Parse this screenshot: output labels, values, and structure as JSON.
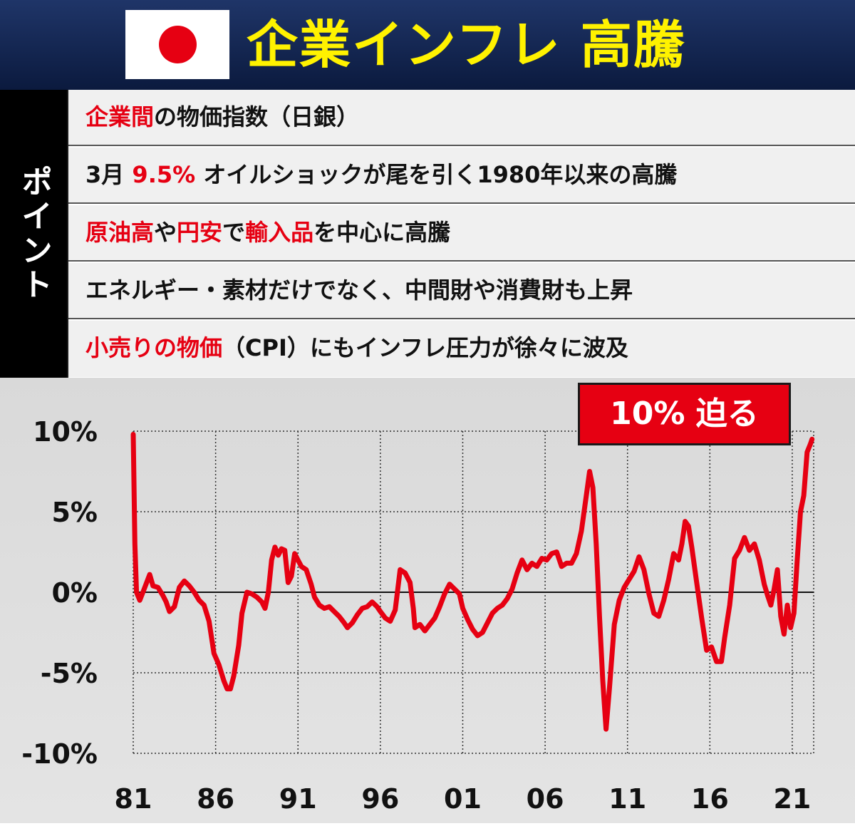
{
  "header": {
    "title": "企業インフレ 高騰",
    "flag_colors": {
      "field": "#ffffff",
      "disc": "#e60012"
    }
  },
  "points": {
    "side_label": "ポイント",
    "rows": [
      [
        {
          "text": "企業間",
          "red": true
        },
        {
          "text": "の物価指数（日銀）",
          "red": false
        }
      ],
      [
        {
          "text": "3月 ",
          "red": false
        },
        {
          "text": "9.5%",
          "red": true
        },
        {
          "text": " オイルショックが尾を引く1980年以来の高騰",
          "red": false
        }
      ],
      [
        {
          "text": "原油高",
          "red": true
        },
        {
          "text": "や",
          "red": false
        },
        {
          "text": "円安",
          "red": true
        },
        {
          "text": "で",
          "red": false
        },
        {
          "text": "輸入品",
          "red": true
        },
        {
          "text": "を中心に高騰",
          "red": false
        }
      ],
      [
        {
          "text": "エネルギー・素材だけでなく、中間財や消費財も上昇",
          "red": false
        }
      ],
      [
        {
          "text": "小売りの物価",
          "red": true
        },
        {
          "text": "（CPI）にもインフレ圧力が徐々に波及",
          "red": false
        }
      ]
    ]
  },
  "callout": {
    "text": "10% 迫る"
  },
  "colors": {
    "accent": "#e60012",
    "title": "#fff200",
    "header_bg": "#0b1a3e"
  },
  "chart_data": {
    "type": "line",
    "title": "",
    "xlabel": "",
    "ylabel": "",
    "ylim": [
      -10,
      10
    ],
    "xlim": [
      1981,
      2022.3
    ],
    "y_ticks": [
      10,
      5,
      0,
      -5,
      -10
    ],
    "y_tick_labels": [
      "10%",
      "5%",
      "0%",
      "-5%",
      "-10%"
    ],
    "x_ticks": [
      1981,
      1986,
      1991,
      1996,
      2001,
      2006,
      2011,
      2016,
      2021
    ],
    "x_tick_labels": [
      "81",
      "86",
      "91",
      "96",
      "01",
      "06",
      "11",
      "16",
      "21"
    ],
    "grid": true,
    "zero_line": true,
    "series": [
      {
        "color": "#e60012",
        "points": [
          [
            1981.0,
            9.8
          ],
          [
            1981.1,
            3.0
          ],
          [
            1981.2,
            0.0
          ],
          [
            1981.4,
            -0.5
          ],
          [
            1981.7,
            0.3
          ],
          [
            1982.0,
            1.1
          ],
          [
            1982.2,
            0.4
          ],
          [
            1982.5,
            0.3
          ],
          [
            1982.8,
            -0.2
          ],
          [
            1983.0,
            -0.6
          ],
          [
            1983.2,
            -1.2
          ],
          [
            1983.5,
            -0.9
          ],
          [
            1983.8,
            0.3
          ],
          [
            1984.1,
            0.7
          ],
          [
            1984.4,
            0.4
          ],
          [
            1984.7,
            0.0
          ],
          [
            1985.0,
            -0.5
          ],
          [
            1985.3,
            -0.8
          ],
          [
            1985.6,
            -1.8
          ],
          [
            1985.9,
            -3.8
          ],
          [
            1986.2,
            -4.5
          ],
          [
            1986.5,
            -5.5
          ],
          [
            1986.7,
            -6.0
          ],
          [
            1986.9,
            -6.0
          ],
          [
            1987.1,
            -5.2
          ],
          [
            1987.4,
            -3.3
          ],
          [
            1987.6,
            -1.3
          ],
          [
            1987.9,
            0.0
          ],
          [
            1988.2,
            -0.1
          ],
          [
            1988.5,
            -0.3
          ],
          [
            1988.8,
            -0.6
          ],
          [
            1989.0,
            -1.0
          ],
          [
            1989.2,
            0.0
          ],
          [
            1989.4,
            2.0
          ],
          [
            1989.6,
            2.8
          ],
          [
            1989.8,
            2.3
          ],
          [
            1990.0,
            2.7
          ],
          [
            1990.2,
            2.6
          ],
          [
            1990.4,
            0.6
          ],
          [
            1990.6,
            1.0
          ],
          [
            1990.8,
            2.4
          ],
          [
            1991.0,
            2.0
          ],
          [
            1991.2,
            1.6
          ],
          [
            1991.5,
            1.4
          ],
          [
            1991.8,
            0.5
          ],
          [
            1992.0,
            -0.3
          ],
          [
            1992.3,
            -0.8
          ],
          [
            1992.6,
            -1.0
          ],
          [
            1992.9,
            -0.9
          ],
          [
            1993.2,
            -1.2
          ],
          [
            1993.5,
            -1.5
          ],
          [
            1993.8,
            -1.9
          ],
          [
            1994.0,
            -2.2
          ],
          [
            1994.3,
            -1.9
          ],
          [
            1994.6,
            -1.4
          ],
          [
            1994.9,
            -1.0
          ],
          [
            1995.2,
            -0.9
          ],
          [
            1995.5,
            -0.6
          ],
          [
            1995.8,
            -0.9
          ],
          [
            1996.0,
            -1.2
          ],
          [
            1996.3,
            -1.6
          ],
          [
            1996.6,
            -1.8
          ],
          [
            1996.9,
            -1.1
          ],
          [
            1997.2,
            1.4
          ],
          [
            1997.5,
            1.2
          ],
          [
            1997.8,
            0.6
          ],
          [
            1998.0,
            -1.0
          ],
          [
            1998.1,
            -2.2
          ],
          [
            1998.4,
            -2.0
          ],
          [
            1998.7,
            -2.4
          ],
          [
            1999.0,
            -2.0
          ],
          [
            1999.3,
            -1.6
          ],
          [
            1999.6,
            -0.9
          ],
          [
            1999.9,
            -0.1
          ],
          [
            2000.2,
            0.5
          ],
          [
            2000.5,
            0.2
          ],
          [
            2000.8,
            -0.1
          ],
          [
            2001.0,
            -1.0
          ],
          [
            2001.3,
            -1.7
          ],
          [
            2001.6,
            -2.3
          ],
          [
            2001.9,
            -2.7
          ],
          [
            2002.2,
            -2.5
          ],
          [
            2002.5,
            -1.9
          ],
          [
            2002.8,
            -1.3
          ],
          [
            2003.1,
            -1.0
          ],
          [
            2003.4,
            -0.8
          ],
          [
            2003.7,
            -0.4
          ],
          [
            2004.0,
            0.2
          ],
          [
            2004.3,
            1.2
          ],
          [
            2004.6,
            2.0
          ],
          [
            2004.9,
            1.4
          ],
          [
            2005.2,
            1.8
          ],
          [
            2005.5,
            1.6
          ],
          [
            2005.8,
            2.1
          ],
          [
            2006.1,
            2.0
          ],
          [
            2006.4,
            2.4
          ],
          [
            2006.7,
            2.5
          ],
          [
            2007.0,
            1.6
          ],
          [
            2007.3,
            1.8
          ],
          [
            2007.6,
            1.8
          ],
          [
            2007.9,
            2.4
          ],
          [
            2008.2,
            3.8
          ],
          [
            2008.5,
            6.0
          ],
          [
            2008.7,
            7.5
          ],
          [
            2008.9,
            6.5
          ],
          [
            2009.1,
            3.0
          ],
          [
            2009.3,
            -1.5
          ],
          [
            2009.5,
            -5.5
          ],
          [
            2009.7,
            -8.5
          ],
          [
            2009.9,
            -6.0
          ],
          [
            2010.2,
            -2.0
          ],
          [
            2010.5,
            -0.5
          ],
          [
            2010.8,
            0.3
          ],
          [
            2011.1,
            0.8
          ],
          [
            2011.4,
            1.3
          ],
          [
            2011.7,
            2.2
          ],
          [
            2012.0,
            1.4
          ],
          [
            2012.3,
            -0.1
          ],
          [
            2012.6,
            -1.3
          ],
          [
            2012.9,
            -1.5
          ],
          [
            2013.2,
            -0.5
          ],
          [
            2013.5,
            0.8
          ],
          [
            2013.8,
            2.4
          ],
          [
            2014.1,
            2.0
          ],
          [
            2014.3,
            3.0
          ],
          [
            2014.5,
            4.4
          ],
          [
            2014.7,
            4.1
          ],
          [
            2014.9,
            2.8
          ],
          [
            2015.2,
            0.6
          ],
          [
            2015.5,
            -1.6
          ],
          [
            2015.8,
            -3.6
          ],
          [
            2016.1,
            -3.4
          ],
          [
            2016.4,
            -4.3
          ],
          [
            2016.7,
            -4.3
          ],
          [
            2016.9,
            -2.8
          ],
          [
            2017.2,
            -0.8
          ],
          [
            2017.5,
            2.1
          ],
          [
            2017.8,
            2.6
          ],
          [
            2018.1,
            3.4
          ],
          [
            2018.4,
            2.6
          ],
          [
            2018.7,
            3.0
          ],
          [
            2019.0,
            2.0
          ],
          [
            2019.3,
            0.5
          ],
          [
            2019.5,
            -0.2
          ],
          [
            2019.7,
            -0.8
          ],
          [
            2019.9,
            0.2
          ],
          [
            2020.1,
            1.4
          ],
          [
            2020.3,
            -1.5
          ],
          [
            2020.5,
            -2.6
          ],
          [
            2020.7,
            -0.8
          ],
          [
            2020.9,
            -2.2
          ],
          [
            2021.1,
            -1.3
          ],
          [
            2021.3,
            2.0
          ],
          [
            2021.5,
            5.0
          ],
          [
            2021.7,
            6.0
          ],
          [
            2021.9,
            8.7
          ],
          [
            2022.1,
            9.2
          ],
          [
            2022.2,
            9.5
          ]
        ]
      }
    ]
  }
}
